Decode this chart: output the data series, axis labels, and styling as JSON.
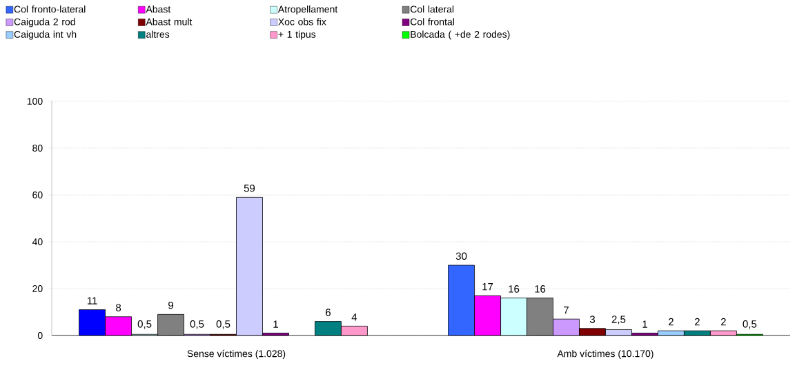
{
  "chart_data": {
    "type": "bar",
    "categories": [
      "Sense víctimes (1.028)",
      "Amb víctimes (10.170)"
    ],
    "ylim": [
      0,
      100
    ],
    "yticks": [
      0,
      20,
      40,
      60,
      80,
      100
    ],
    "grid": "y",
    "legend": "top",
    "series": [
      {
        "name": "Col fronto-lateral",
        "color": "#3366ff",
        "colors": [
          "#0000ff",
          "#3366ff"
        ],
        "values": [
          11,
          30
        ],
        "value_labels": [
          "11",
          "30"
        ]
      },
      {
        "name": "Abast",
        "color": "#ff00ff",
        "values": [
          8,
          17
        ],
        "value_labels": [
          "8",
          "17"
        ]
      },
      {
        "name": "Atropellament",
        "color": "#ccffff",
        "values": [
          0.5,
          16
        ],
        "value_labels": [
          "0,5",
          "16"
        ]
      },
      {
        "name": "Col lateral",
        "color": "#808080",
        "values": [
          9,
          16
        ],
        "value_labels": [
          "9",
          "16"
        ]
      },
      {
        "name": "Caiguda 2 rod",
        "color": "#cc99ff",
        "values": [
          0.5,
          7
        ],
        "value_labels": [
          "0,5",
          "7"
        ]
      },
      {
        "name": "Abast mult",
        "color": "#800000",
        "values": [
          0.5,
          3
        ],
        "value_labels": [
          "0,5",
          "3"
        ]
      },
      {
        "name": "Xoc obs fix",
        "color": "#ccccff",
        "values": [
          59,
          2.5
        ],
        "value_labels": [
          "59",
          "2,5"
        ]
      },
      {
        "name": "Col frontal",
        "color": "#800080",
        "values": [
          1,
          1
        ],
        "value_labels": [
          "1",
          "1"
        ]
      },
      {
        "name": "Caiguda int vh",
        "color": "#99ccff",
        "values": [
          null,
          2
        ],
        "value_labels": [
          null,
          "2"
        ]
      },
      {
        "name": "altres",
        "color": "#008080",
        "values": [
          6,
          2
        ],
        "value_labels": [
          "6",
          "2"
        ]
      },
      {
        "name": "+ 1 tipus",
        "color": "#ff99cc",
        "values": [
          4,
          2
        ],
        "value_labels": [
          "4",
          "2"
        ]
      },
      {
        "name": "Bolcada ( +de 2 rodes)",
        "color": "#00ff00",
        "values": [
          null,
          0.5
        ],
        "value_labels": [
          null,
          "0,5"
        ]
      }
    ]
  }
}
